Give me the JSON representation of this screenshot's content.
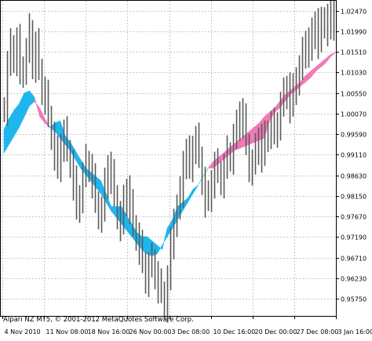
{
  "window": {
    "title": "",
    "copyright": "Alpari NZ MT5, © 2001-2012 MetaQuotes Software Corp."
  },
  "colors": {
    "background": "#ffffff",
    "grid": "#c8c8c8",
    "candle": "#5a5a5a",
    "cloud_bull": "#1fb6ee",
    "cloud_bear": "#f07ab8",
    "axis": "#000000"
  },
  "chart_data": {
    "type": "line",
    "title": "",
    "xlabel": "",
    "ylabel": "",
    "ylim": [
      0.9535,
      1.027
    ],
    "y_ticks": [
      "1.02470",
      "1.01990",
      "1.01510",
      "1.01030",
      "1.00550",
      "1.00070",
      "0.99590",
      "0.99110",
      "0.98630",
      "0.98150",
      "0.97670",
      "0.97190",
      "0.96710",
      "0.96230",
      "0.95750"
    ],
    "x_ticks": [
      "4 Nov 2010",
      "11 Nov 08:00",
      "18 Nov 16:00",
      "26 Nov 00:00",
      "3 Dec 08:00",
      "10 Dec 16:00",
      "20 Dec 00:00",
      "27 Dec 08:00",
      "3 Jan 16:00"
    ],
    "grid": true,
    "series": [
      {
        "values": [
          1.002,
          1.012,
          1.0165,
          1.0135,
          1.0175,
          1.01,
          1.0115,
          1.015,
          1.02,
          1.012,
          1.0165,
          1.011,
          1.006,
          1.0045,
          1.0,
          0.9955,
          0.9915,
          0.988,
          0.9935,
          0.996,
          0.992,
          0.989,
          0.9845,
          0.9785,
          0.9815,
          0.986,
          0.9895,
          0.988,
          0.985,
          0.98,
          0.977,
          0.978,
          0.984,
          0.9885,
          0.986,
          0.9815,
          0.977,
          0.975,
          0.98,
          0.983,
          0.979,
          0.9745,
          0.972,
          0.9695,
          0.966,
          0.962,
          0.965,
          0.9665,
          0.963,
          0.9605,
          0.959,
          0.956,
          0.962,
          0.97,
          0.976,
          0.9785,
          0.982,
          0.9895,
          0.9915,
          0.988,
          0.993,
          0.9945,
          0.9905,
          0.985,
          0.9805,
          0.981,
          0.985,
          0.9885,
          0.987,
          0.985,
          0.988,
          0.9915,
          0.9905,
          0.995,
          0.9975,
          1.001,
          0.999,
          0.9935,
          0.988,
          0.989,
          0.992,
          0.995,
          0.991,
          0.995,
          0.9965,
          0.998,
          0.996,
          0.9985,
          1.0025,
          1.005,
          1.007,
          1.0025,
          1.006,
          1.009,
          1.011,
          1.0145,
          1.0175,
          1.0155,
          1.019,
          1.022,
          1.0175,
          1.0215,
          1.023,
          1.0205,
          1.0245,
          1.021
        ]
      },
      {
        "values": [
          0.997,
          0.9995,
          1.0015,
          1.003,
          1.0055,
          1.006,
          1.0045,
          1.0,
          0.9985,
          0.9975,
          0.9985,
          0.999,
          0.9955,
          0.994,
          0.992,
          0.99,
          0.988,
          0.987,
          0.986,
          0.985,
          0.982,
          0.979,
          0.979,
          0.979,
          0.977,
          0.975,
          0.973,
          0.972,
          0.972,
          0.971,
          0.97,
          0.969,
          0.974,
          0.976,
          0.979,
          0.98,
          0.981,
          0.983,
          0.984,
          0.986,
          0.988,
          0.988,
          0.989,
          0.99,
          0.991,
          0.992,
          0.9925,
          0.993,
          0.9935,
          0.994,
          0.9945,
          0.995,
          0.999,
          1.001,
          1.002,
          1.0035,
          1.005,
          1.006,
          1.007,
          1.008,
          1.009,
          1.0105,
          1.0115,
          1.0125,
          1.014,
          1.015,
          1.0155,
          1.017,
          1.018,
          1.0185,
          1.019
        ]
      },
      {
        "values": [
          0.9915,
          0.9935,
          0.9955,
          0.9975,
          1.0,
          1.0025,
          1.0035,
          1.002,
          0.9995,
          0.9975,
          0.9965,
          0.995,
          0.9935,
          0.992,
          0.99,
          0.988,
          0.9865,
          0.985,
          0.9835,
          0.982,
          0.98,
          0.978,
          0.9765,
          0.975,
          0.9735,
          0.972,
          0.9705,
          0.969,
          0.968,
          0.9675,
          0.968,
          0.97,
          0.972,
          0.974,
          0.976,
          0.978,
          0.98,
          0.982,
          0.984,
          0.986,
          0.988,
          0.9895,
          0.9905,
          0.9915,
          0.9925,
          0.9935,
          0.9945,
          0.9955,
          0.9965,
          0.9975,
          0.9985,
          1.0,
          1.001,
          1.002,
          1.0035,
          1.005,
          1.006,
          1.007,
          1.008,
          1.0095,
          1.0105,
          1.0115,
          1.0125,
          1.0135,
          1.0145,
          1.015
        ]
      }
    ]
  }
}
